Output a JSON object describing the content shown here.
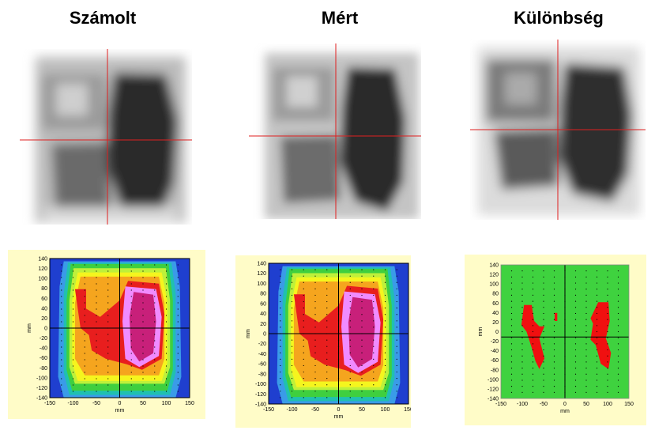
{
  "titles": [
    "Számolt",
    "Mért",
    "Különbség"
  ],
  "plots": [
    {
      "xlabel": "mm",
      "ylabel": "mm",
      "xticks": [
        "-150",
        "-100",
        "-50",
        "0",
        "50",
        "100",
        "150"
      ],
      "yticks": [
        "140",
        "120",
        "100",
        "80",
        "60",
        "40",
        "20",
        "0",
        "-20",
        "-40",
        "-60",
        "-80",
        "-100",
        "-120",
        "-140"
      ]
    },
    {
      "xlabel": "mm",
      "ylabel": "mm",
      "xticks": [
        "-150",
        "-100",
        "-50",
        "0",
        "50",
        "100",
        "150"
      ],
      "yticks": [
        "140",
        "120",
        "100",
        "80",
        "60",
        "40",
        "20",
        "0",
        "-20",
        "-40",
        "-60",
        "-80",
        "-100",
        "-120",
        "-140"
      ]
    },
    {
      "xlabel": "mm",
      "ylabel": "mm",
      "xticks": [
        "-150",
        "-100",
        "-50",
        "0",
        "50",
        "100",
        "150"
      ],
      "yticks": [
        "140",
        "120",
        "100",
        "80",
        "60",
        "40",
        "20",
        "0",
        "-20",
        "-40",
        "-60",
        "-80",
        "-100",
        "-120",
        "-140"
      ]
    }
  ],
  "colors": {
    "crosshair": "#e02020",
    "panel_bg": "#fffcc8",
    "plot_bg": "#1f3fcf",
    "levels": [
      "#1f3fcf",
      "#3a9be8",
      "#20c0b0",
      "#3fcf3f",
      "#bff03a",
      "#f5f51e",
      "#f5a51e",
      "#e81e1e",
      "#f08bff",
      "#c8207a"
    ],
    "diff_pass": "#3fd23f",
    "diff_fail": "#f01010"
  }
}
